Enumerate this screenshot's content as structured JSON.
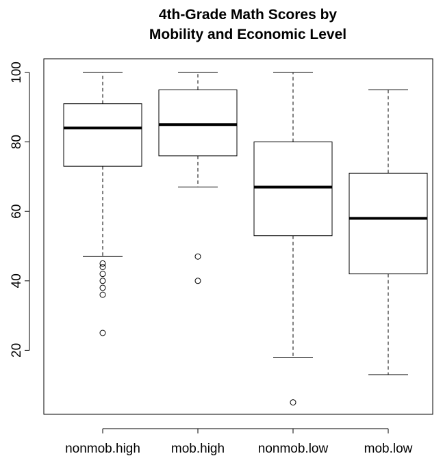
{
  "chart_data": {
    "type": "box",
    "title": "4th-Grade Math Scores by Mobility and Economic Level",
    "title_lines": [
      "4th-Grade Math Scores by",
      "Mobility and Economic Level"
    ],
    "xlabel": "",
    "ylabel": "",
    "ylim": [
      2,
      104
    ],
    "yticks": [
      20,
      40,
      60,
      80,
      100
    ],
    "grid": false,
    "categories": [
      "nonmob.high",
      "mob.high",
      "nonmob.low",
      "mob.low"
    ],
    "boxes": [
      {
        "category": "nonmob.high",
        "whisker_low": 47,
        "q1": 73,
        "median": 84,
        "q3": 91,
        "whisker_high": 100,
        "outliers": [
          45,
          44,
          42,
          40,
          38,
          36,
          25
        ]
      },
      {
        "category": "mob.high",
        "whisker_low": 67,
        "q1": 76,
        "median": 85,
        "q3": 95,
        "whisker_high": 100,
        "outliers": [
          47,
          40
        ]
      },
      {
        "category": "nonmob.low",
        "whisker_low": 18,
        "q1": 53,
        "median": 67,
        "q3": 80,
        "whisker_high": 100,
        "outliers": [
          5
        ]
      },
      {
        "category": "mob.low",
        "whisker_low": 13,
        "q1": 42,
        "median": 58,
        "q3": 71,
        "whisker_high": 95,
        "outliers": []
      }
    ]
  }
}
